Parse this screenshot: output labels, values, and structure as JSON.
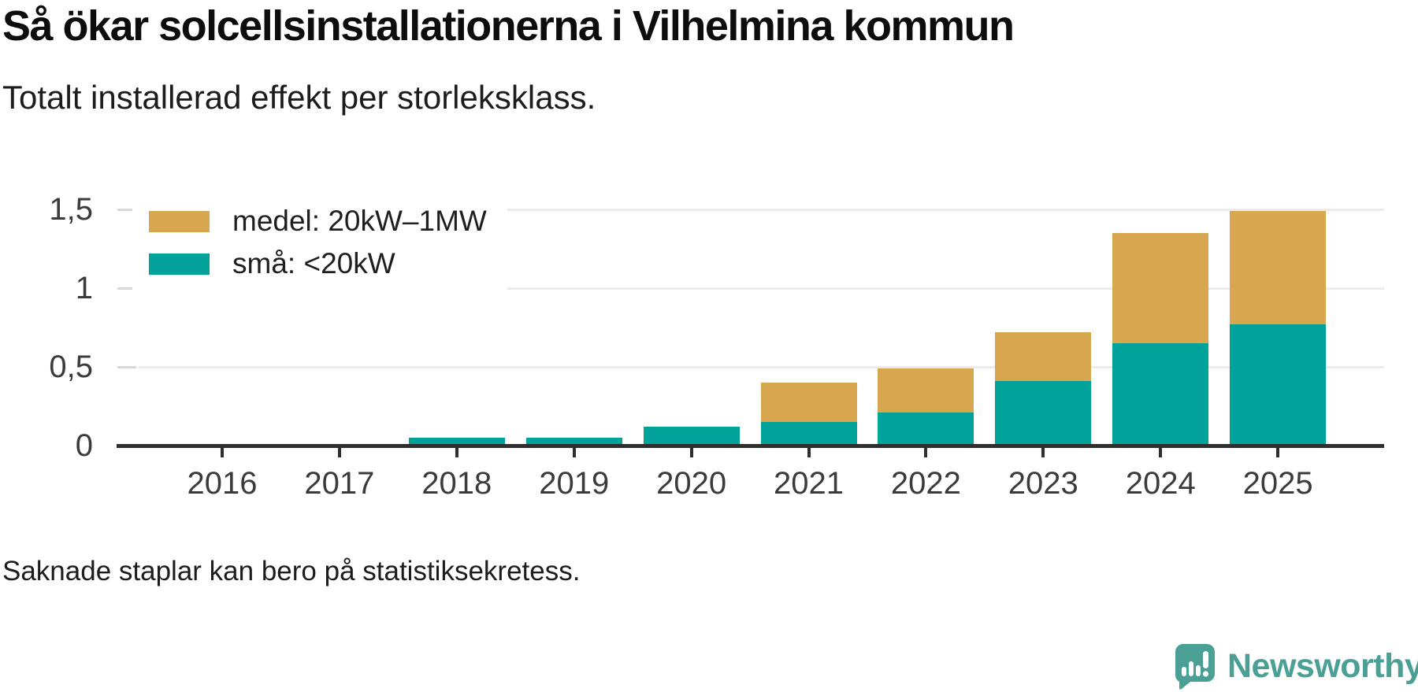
{
  "header": {
    "title": "Så ökar solcellsinstallationerna i Vilhelmina kommun",
    "subtitle": "Totalt installerad effekt per storleksklass."
  },
  "footer": {
    "note": "Saknade staplar kan bero på statistiksekretess.",
    "brand": "Newsworthy"
  },
  "colors": {
    "medel": "#d7a64e",
    "sma": "#00a29a",
    "brand_teal": "#4ba096",
    "axis": "#2e2e2e",
    "gridline": "#ebebeb",
    "label_gray": "#3b3b3b"
  },
  "chart_data": {
    "type": "bar",
    "stacked": true,
    "title": "Så ökar solcellsinstallationerna i Vilhelmina kommun",
    "subtitle": "Totalt installerad effekt per storleksklass.",
    "note": "Saknade staplar kan bero på statistiksekretess.",
    "categories": [
      "2016",
      "2017",
      "2018",
      "2019",
      "2020",
      "2021",
      "2022",
      "2023",
      "2024",
      "2025"
    ],
    "series": [
      {
        "name": "medel: 20kW–1MW",
        "color": "#d7a64e",
        "values": [
          0,
          0,
          0,
          0,
          0,
          0.25,
          0.28,
          0.31,
          0.7,
          0.72
        ]
      },
      {
        "name": "små: <20kW",
        "color": "#00a29a",
        "values": [
          0,
          0,
          0.05,
          0.05,
          0.12,
          0.15,
          0.21,
          0.41,
          0.65,
          0.77
        ]
      }
    ],
    "stack_order_bottom_to_top": [
      "små: <20kW",
      "medel: 20kW–1MW"
    ],
    "totals": [
      0,
      0,
      0.05,
      0.05,
      0.12,
      0.4,
      0.49,
      0.72,
      1.35,
      1.49
    ],
    "xlabel": "",
    "ylabel": "",
    "ylim": [
      0,
      1.5
    ],
    "yticks": [
      {
        "value": 0,
        "label": "0"
      },
      {
        "value": 0.5,
        "label": "0,5"
      },
      {
        "value": 1,
        "label": "1"
      },
      {
        "value": 1.5,
        "label": "1,5"
      }
    ],
    "grid": true,
    "legend_position": "top-left"
  }
}
